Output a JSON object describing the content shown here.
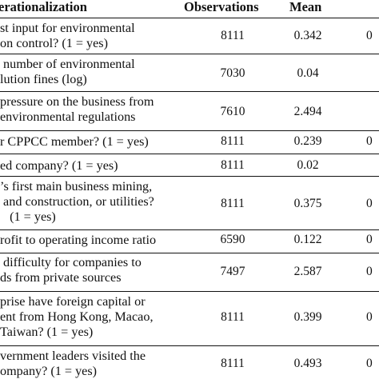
{
  "header": {
    "col_operationalization": "erationalization",
    "col_observations": "Observations",
    "col_mean": "Mean"
  },
  "rows": [
    {
      "label": "st input for environmental\non control? (1 = yes)",
      "obs": "8111",
      "mean": "0.342",
      "extra": "0"
    },
    {
      "label": " number of environmental\nlution fines (log)",
      "obs": "7030",
      "mean": "0.04",
      "extra": ""
    },
    {
      "label": "pressure on the business from\nenvironmental regulations",
      "obs": "7610",
      "mean": "2.494",
      "extra": ""
    },
    {
      "label": "r CPPCC member? (1 = yes)",
      "obs": "8111",
      "mean": "0.239",
      "extra": "0"
    },
    {
      "label": "ed company? (1 = yes)",
      "obs": "8111",
      "mean": "0.02",
      "extra": ""
    },
    {
      "label": "’s first main business mining,\n and construction, or utilities?\n   (1 = yes)",
      "obs": "8111",
      "mean": "0.375",
      "extra": "0"
    },
    {
      "label": "rofit to operating income ratio",
      "obs": "6590",
      "mean": "0.122",
      "extra": "0"
    },
    {
      "label": " difficulty for companies to\nds from private sources",
      "obs": "7497",
      "mean": "2.587",
      "extra": "0"
    },
    {
      "label": "prise have foreign capital or\nent from Hong Kong, Macao,\nTaiwan? (1 = yes)",
      "obs": "8111",
      "mean": "0.399",
      "extra": "0"
    },
    {
      "label": "vernment leaders visited the\nompany? (1 = yes)",
      "obs": "8111",
      "mean": "0.493",
      "extra": "0"
    }
  ]
}
